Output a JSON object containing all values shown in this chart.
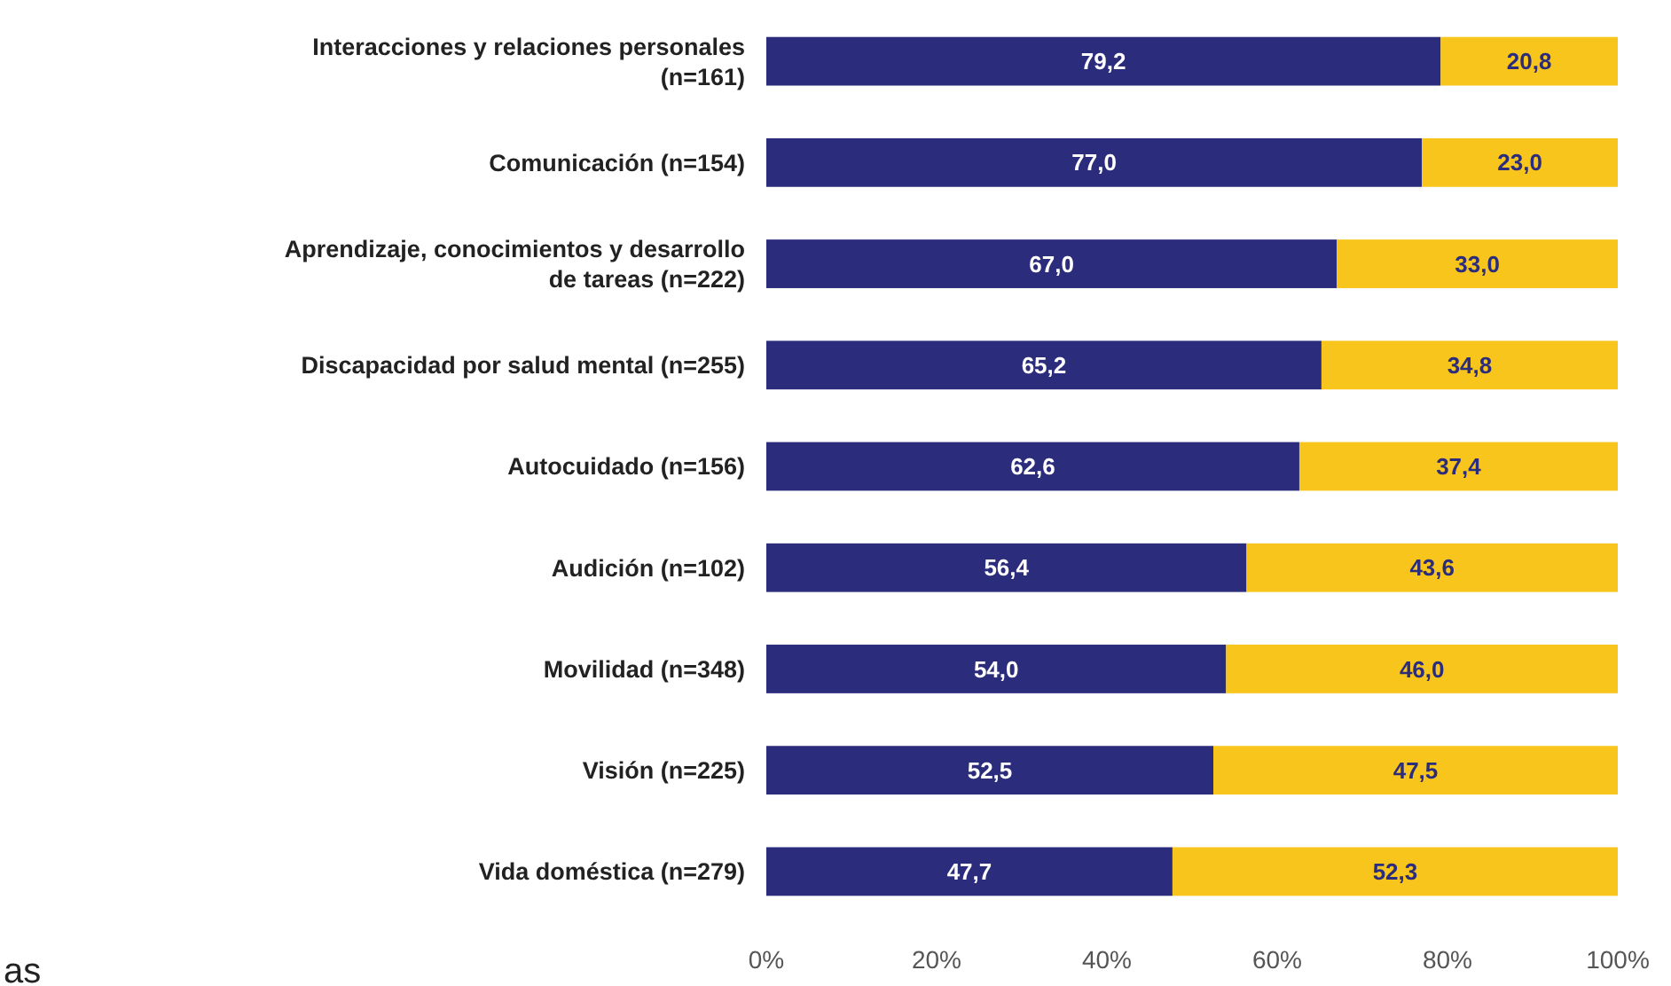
{
  "chart_data": {
    "type": "bar",
    "orientation": "horizontal",
    "stacked": true,
    "categories": [
      "Interacciones y relaciones personales (n=161)",
      "Comunicación (n=154)",
      "Aprendizaje, conocimientos y desarrollo de tareas (n=222)",
      "Discapacidad por salud mental (n=255)",
      "Autocuidado (n=156)",
      "Audición (n=102)",
      "Movilidad (n=348)",
      "Visión (n=225)",
      "Vida doméstica (n=279)"
    ],
    "series": [
      {
        "color": "#2b2d7c",
        "values": [
          79.2,
          77.0,
          67.0,
          65.2,
          62.6,
          56.4,
          54.0,
          52.5,
          47.7
        ],
        "value_labels": [
          "79,2",
          "77,0",
          "67,0",
          "65,2",
          "62,6",
          "56,4",
          "54,0",
          "52,5",
          "47,7"
        ]
      },
      {
        "color": "#f8c51c",
        "values": [
          20.8,
          23.0,
          33.0,
          34.8,
          37.4,
          43.6,
          46.0,
          47.5,
          52.3
        ],
        "value_labels": [
          "20,8",
          "23,0",
          "33,0",
          "34,8",
          "37,4",
          "43,6",
          "46,0",
          "47,5",
          "52,3"
        ]
      }
    ],
    "xlim": [
      0,
      100
    ],
    "xticks": [
      {
        "value": 0,
        "label": "0%"
      },
      {
        "value": 20,
        "label": "20%"
      },
      {
        "value": 40,
        "label": "40%"
      },
      {
        "value": 60,
        "label": "60%"
      },
      {
        "value": 80,
        "label": "80%"
      },
      {
        "value": 100,
        "label": "100%"
      }
    ],
    "grid": false,
    "annotations": [
      {
        "text": "as"
      }
    ]
  }
}
